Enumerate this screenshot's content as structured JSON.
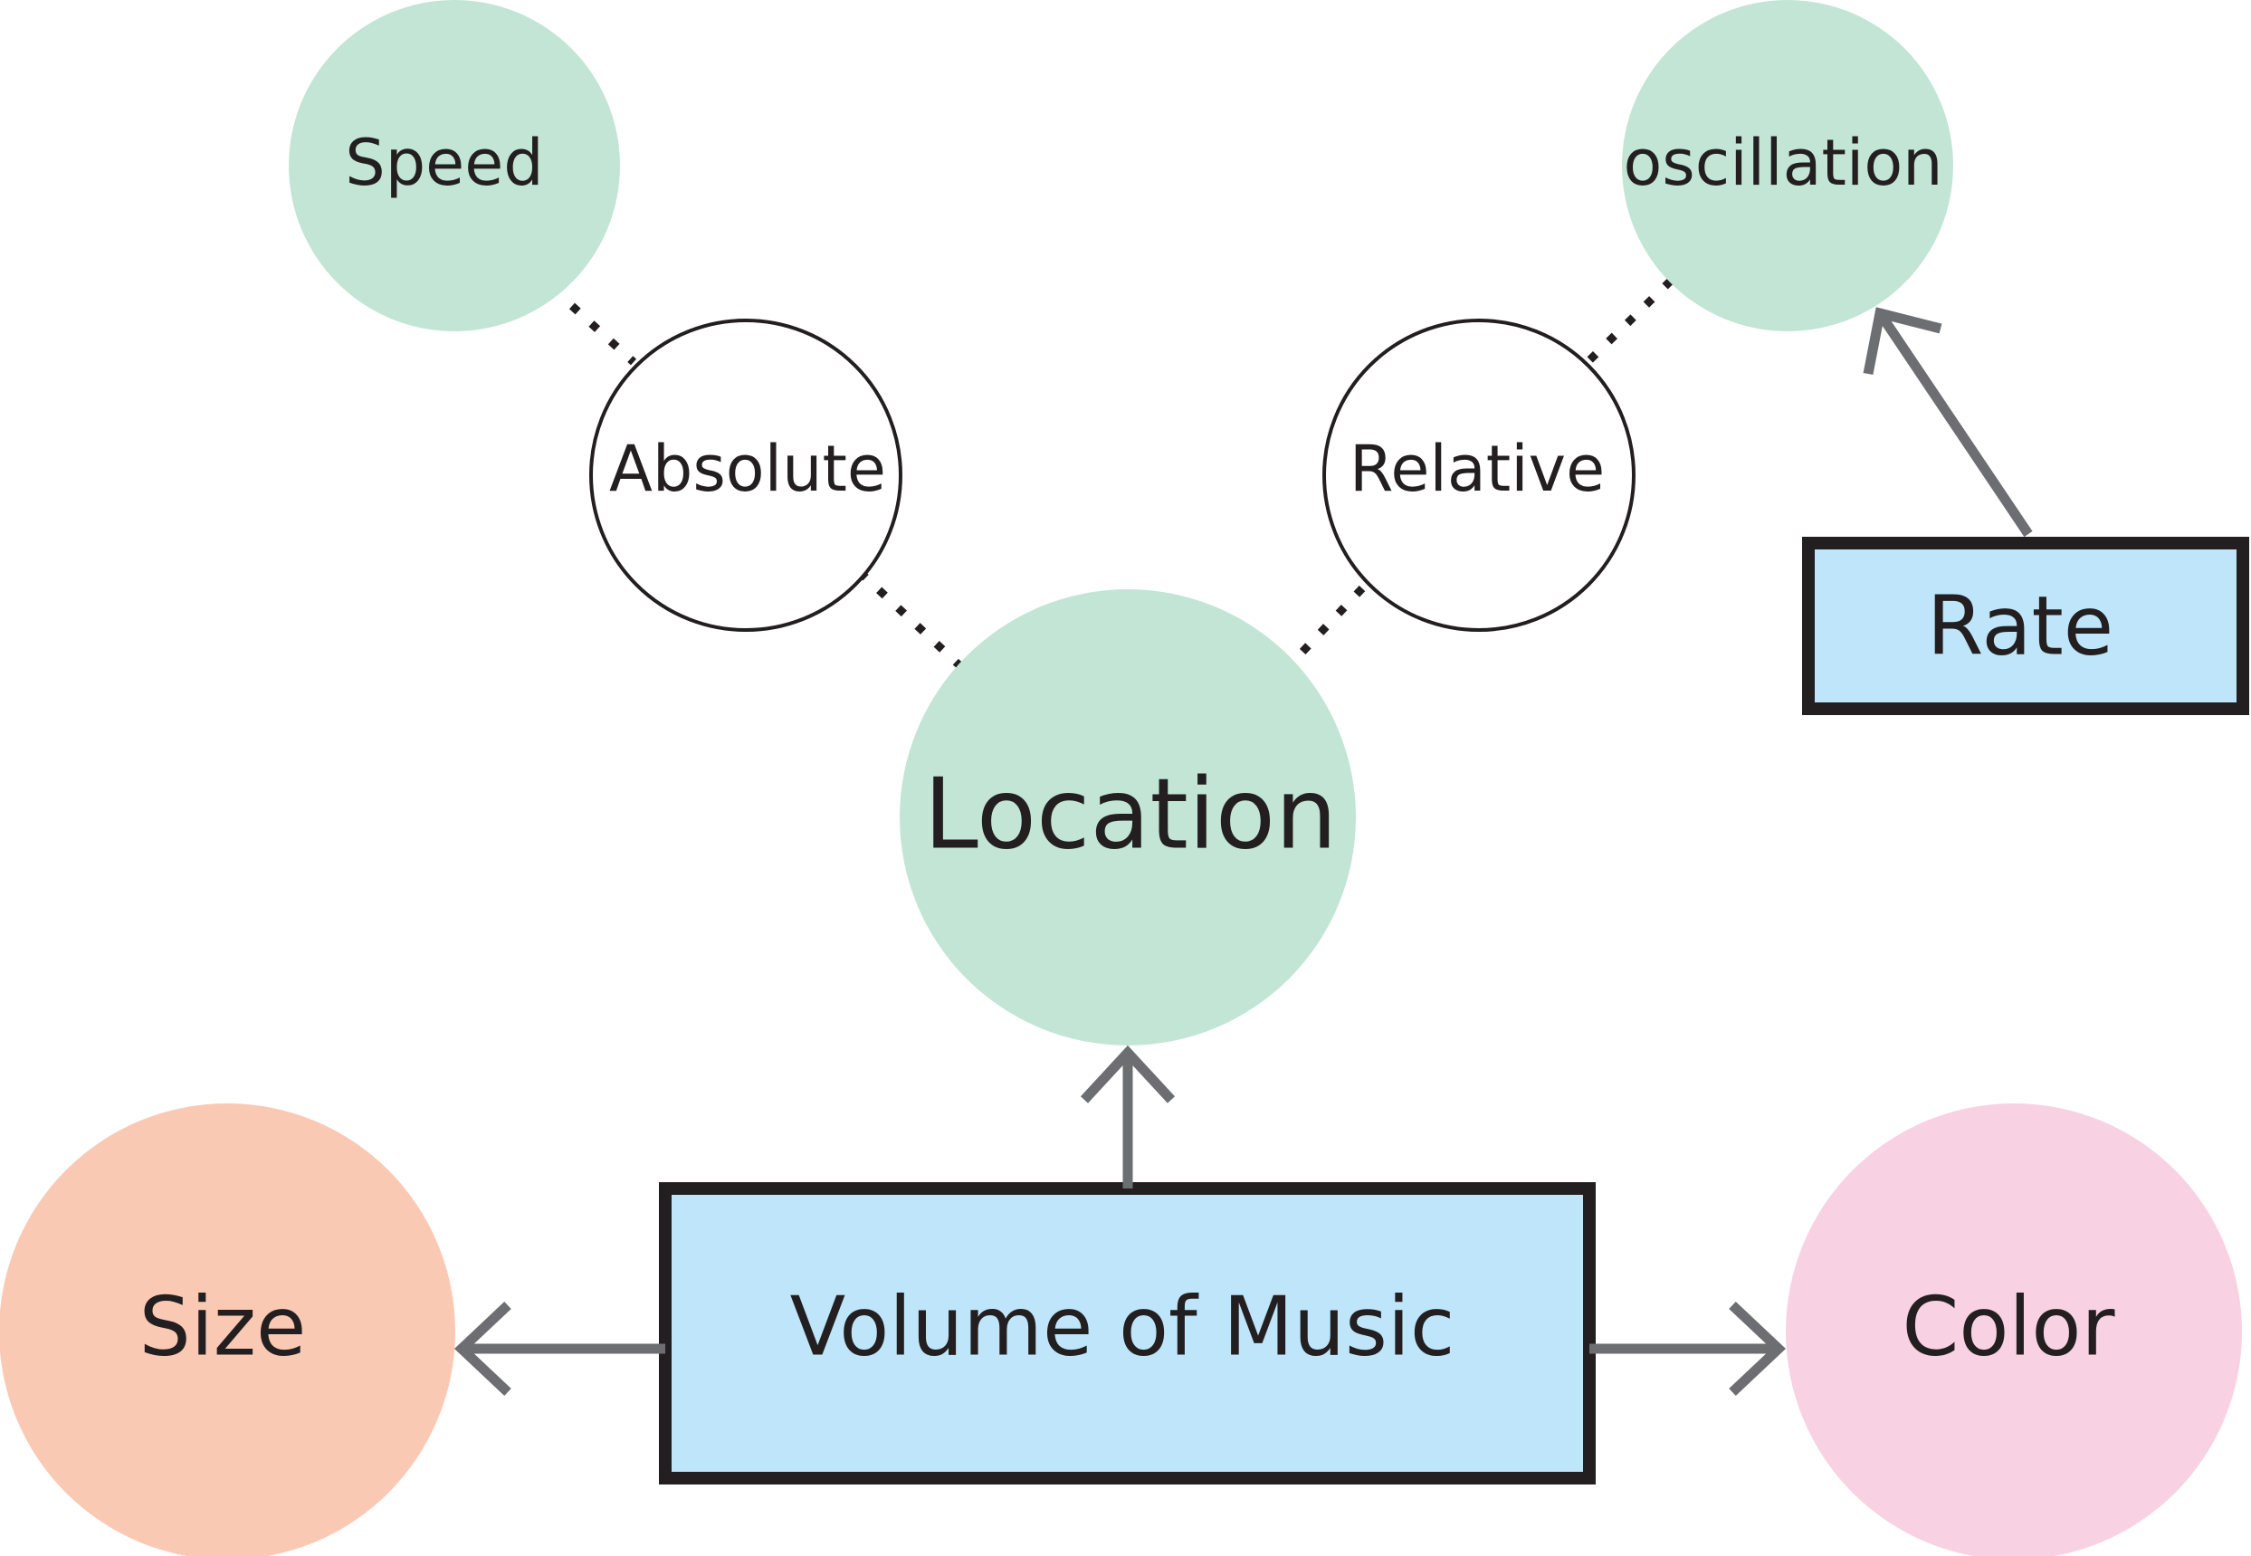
{
  "nodes": {
    "speed": {
      "label": "Speed",
      "color": "#c3e5d5"
    },
    "oscillation": {
      "label": "oscillation",
      "color": "#c3e5d5"
    },
    "absolute": {
      "label": "Absolute",
      "color": "#ffffff"
    },
    "relative": {
      "label": "Relative",
      "color": "#ffffff"
    },
    "location": {
      "label": "Location",
      "color": "#c3e5d5"
    },
    "rate": {
      "label": "Rate",
      "color": "#bee5f9"
    },
    "volume": {
      "label": "Volume of Music",
      "color": "#bee5f9"
    },
    "size": {
      "label": "Size",
      "color": "#fac9b4"
    },
    "color": {
      "label": "Color",
      "color": "#f8d2e2"
    }
  },
  "edges": [
    {
      "from": "speed",
      "to": "absolute",
      "style": "dotted"
    },
    {
      "from": "absolute",
      "to": "location",
      "style": "dotted"
    },
    {
      "from": "oscillation",
      "to": "relative",
      "style": "dotted"
    },
    {
      "from": "relative",
      "to": "location",
      "style": "dotted"
    },
    {
      "from": "rate",
      "to": "oscillation",
      "style": "arrow"
    },
    {
      "from": "volume",
      "to": "location",
      "style": "arrow"
    },
    {
      "from": "volume",
      "to": "size",
      "style": "arrow"
    },
    {
      "from": "volume",
      "to": "color",
      "style": "arrow"
    }
  ],
  "colors": {
    "text": "#231f20",
    "box_border": "#231f20",
    "arrow": "#6d6e71",
    "circle_outline": "#231f20"
  }
}
